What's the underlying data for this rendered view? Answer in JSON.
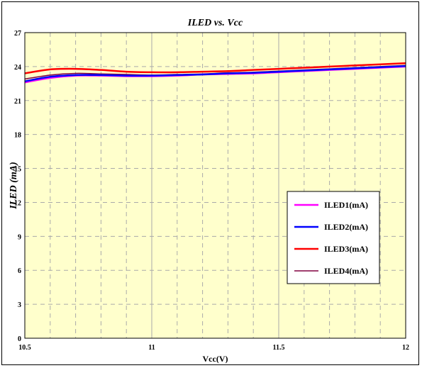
{
  "chart_data": {
    "type": "line",
    "title": "ILED vs. Vcc",
    "xlabel": "Vcc(V)",
    "ylabel": "ILED (mA)",
    "xlim": [
      10.5,
      12
    ],
    "ylim": [
      0,
      27
    ],
    "x_ticks": [
      "10.5",
      "11",
      "11.5",
      "12"
    ],
    "y_ticks": [
      "0",
      "3",
      "6",
      "9",
      "12",
      "15",
      "18",
      "21",
      "24",
      "27"
    ],
    "x_minor_grid": [
      10.6,
      10.7,
      10.8,
      10.9,
      11.1,
      11.2,
      11.3,
      11.4,
      11.6,
      11.7,
      11.8,
      11.9
    ],
    "grid": true,
    "legend_position": "right",
    "background_color": "#ffffcc",
    "series": [
      {
        "name": "ILED1(mA)",
        "color": "#ff00ff",
        "x": [
          10.5,
          10.6,
          10.7,
          10.8,
          10.9,
          11.0,
          11.1,
          11.2,
          11.3,
          11.4,
          11.5,
          11.6,
          11.7,
          11.8,
          11.9,
          12.0
        ],
        "y": [
          22.6,
          23.0,
          23.2,
          23.2,
          23.15,
          23.15,
          23.2,
          23.3,
          23.35,
          23.4,
          23.5,
          23.6,
          23.7,
          23.8,
          23.9,
          24.0
        ]
      },
      {
        "name": "ILED2(mA)",
        "color": "#0000ff",
        "x": [
          10.5,
          10.6,
          10.7,
          10.8,
          10.9,
          11.0,
          11.1,
          11.2,
          11.3,
          11.4,
          11.5,
          11.6,
          11.7,
          11.8,
          11.9,
          12.0
        ],
        "y": [
          22.7,
          23.1,
          23.25,
          23.25,
          23.2,
          23.2,
          23.25,
          23.3,
          23.4,
          23.45,
          23.55,
          23.65,
          23.75,
          23.85,
          23.95,
          24.05
        ]
      },
      {
        "name": "ILED3(mA)",
        "color": "#ff0000",
        "x": [
          10.5,
          10.6,
          10.7,
          10.8,
          10.9,
          11.0,
          11.1,
          11.2,
          11.3,
          11.4,
          11.5,
          11.6,
          11.7,
          11.8,
          11.9,
          12.0
        ],
        "y": [
          23.4,
          23.75,
          23.8,
          23.7,
          23.55,
          23.5,
          23.5,
          23.55,
          23.6,
          23.7,
          23.8,
          23.9,
          24.0,
          24.1,
          24.2,
          24.3
        ]
      },
      {
        "name": "ILED4(mA)",
        "color": "#800040",
        "x": [
          10.5,
          10.6,
          10.7,
          10.8,
          10.9,
          11.0,
          11.1,
          11.2,
          11.3,
          11.4,
          11.5,
          11.6,
          11.7,
          11.8,
          11.9,
          12.0
        ],
        "y": [
          22.9,
          23.25,
          23.4,
          23.35,
          23.3,
          23.25,
          23.3,
          23.35,
          23.45,
          23.5,
          23.6,
          23.7,
          23.8,
          23.9,
          24.0,
          24.1
        ]
      }
    ]
  }
}
